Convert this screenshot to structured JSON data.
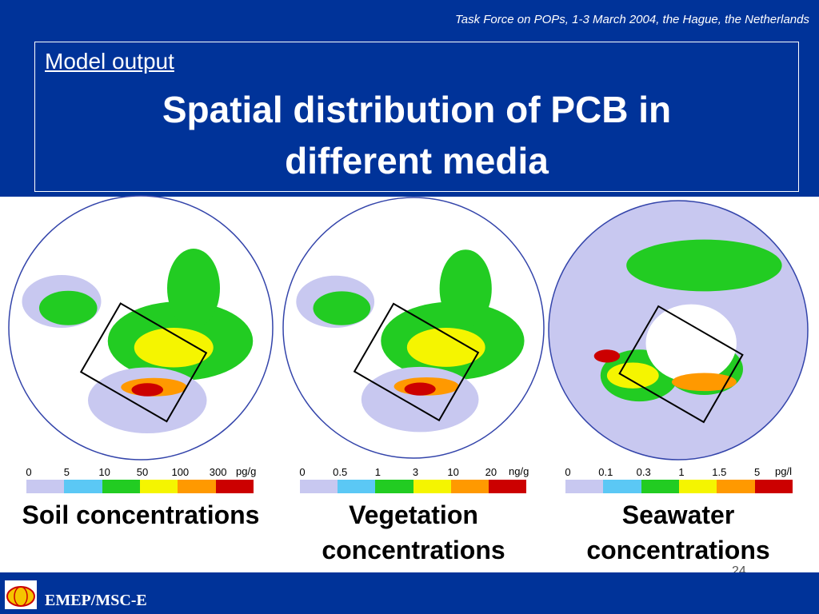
{
  "header": {
    "event": "Task Force on POPs, 1-3 March 2004, the Hague, the Netherlands"
  },
  "title": {
    "kicker": "Model output",
    "main": "Spatial distribution of PCB in different media"
  },
  "panels": [
    {
      "caption": "Soil concentrations",
      "unit": "pg/g",
      "scale_labels": [
        "0",
        "5",
        "10",
        "50",
        "100",
        "300"
      ]
    },
    {
      "caption": "Vegetation concentrations",
      "unit": "ng/g",
      "scale_labels": [
        "0",
        "0.5",
        "1",
        "3",
        "10",
        "20"
      ]
    },
    {
      "caption": "Seawater concentrations",
      "unit": "pg/l",
      "scale_labels": [
        "0",
        "0.1",
        "0.3",
        "1",
        "1.5",
        "5"
      ]
    }
  ],
  "footer": {
    "org": "EMEP/MSC-E",
    "page": "24"
  }
}
